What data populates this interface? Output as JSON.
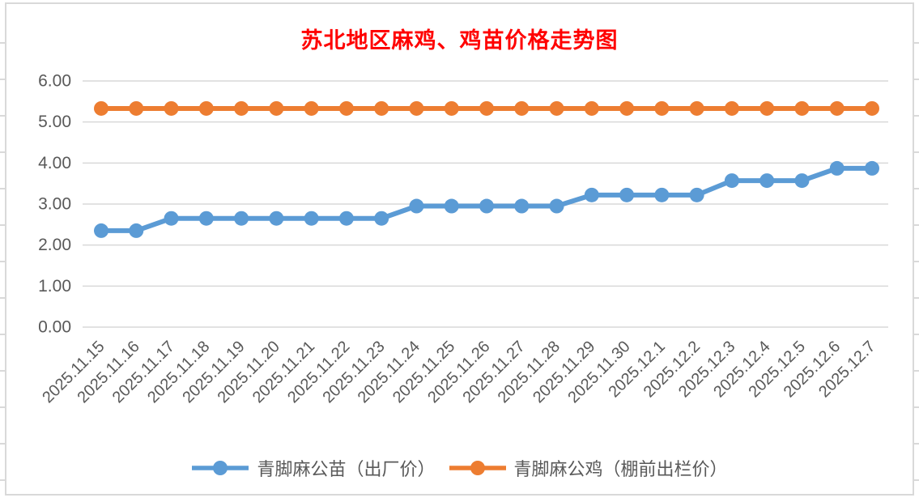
{
  "chart_data": {
    "type": "line",
    "title": "苏北地区麻鸡、鸡苗价格走势图",
    "categories": [
      "2025.11.15",
      "2025.11.16",
      "2025.11.17",
      "2025.11.18",
      "2025.11.19",
      "2025.11.20",
      "2025.11.21",
      "2025.11.22",
      "2025.11.23",
      "2025.11.24",
      "2025.11.25",
      "2025.11.26",
      "2025.11.27",
      "2025.11.28",
      "2025.11.29",
      "2025.11.30",
      "2025.12.1",
      "2025.12.2",
      "2025.12.3",
      "2025.12.4",
      "2025.12.5",
      "2025.12.6",
      "2025.12.7"
    ],
    "series": [
      {
        "name": "青脚麻公苗（出厂价）",
        "color": "#5B9BD5",
        "values": [
          2.35,
          2.35,
          2.65,
          2.65,
          2.65,
          2.65,
          2.65,
          2.65,
          2.65,
          2.95,
          2.95,
          2.95,
          2.95,
          2.95,
          3.22,
          3.22,
          3.22,
          3.22,
          3.57,
          3.57,
          3.57,
          3.87,
          3.87
        ]
      },
      {
        "name": "青脚麻公鸡（棚前出栏价）",
        "color": "#ED7D31",
        "values": [
          5.33,
          5.33,
          5.33,
          5.33,
          5.33,
          5.33,
          5.33,
          5.33,
          5.33,
          5.33,
          5.33,
          5.33,
          5.33,
          5.33,
          5.33,
          5.33,
          5.33,
          5.33,
          5.33,
          5.33,
          5.33,
          5.33,
          5.33
        ]
      }
    ],
    "ylim": [
      0,
      6
    ],
    "ytick_step": 1,
    "ytick_labels": [
      "0.00",
      "1.00",
      "2.00",
      "3.00",
      "4.00",
      "5.00",
      "6.00"
    ],
    "xlabel": "",
    "ylabel": "",
    "grid": "horizontal",
    "legend_position": "bottom",
    "x_label_rotation": -45
  },
  "colors": {
    "title_text": "#FF0000",
    "axis_text": "#595959",
    "gridline": "#D9D9D9",
    "frame_border": "#D9D9D9",
    "blue_series": "#5B9BD5",
    "orange_series": "#ED7D31"
  }
}
